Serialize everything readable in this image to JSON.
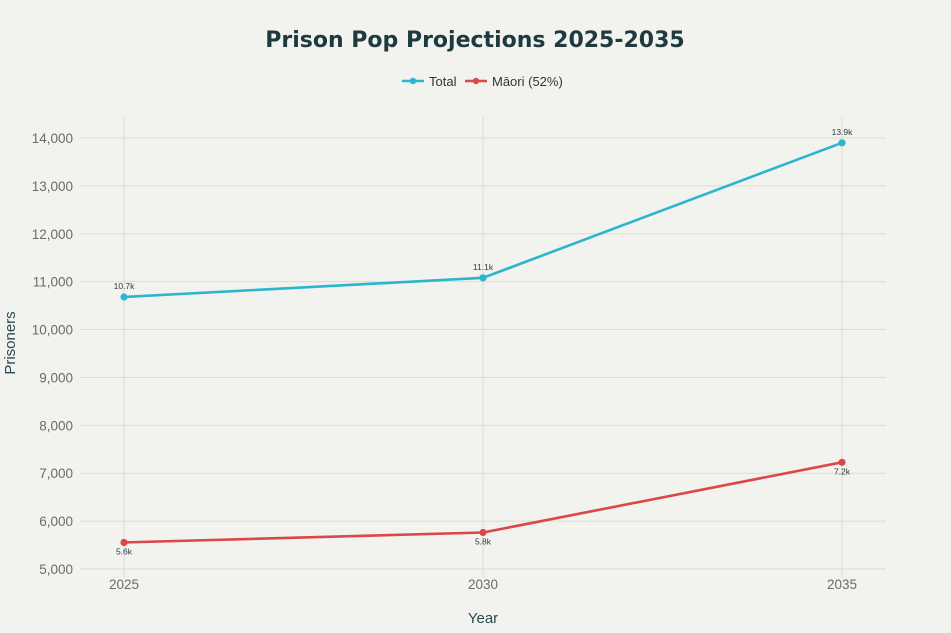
{
  "chart_data": {
    "type": "line",
    "title": "Prison Pop Projections 2025-2035",
    "xlabel": "Year",
    "ylabel": "Prisoners",
    "x": [
      2025,
      2030,
      2035
    ],
    "x_tick_labels": [
      "2025",
      "2030",
      "2035"
    ],
    "ylim": [
      5000,
      14000
    ],
    "y_ticks": [
      5000,
      6000,
      7000,
      8000,
      9000,
      10000,
      11000,
      12000,
      13000,
      14000
    ],
    "y_tick_labels": [
      "5,000",
      "6,000",
      "7,000",
      "8,000",
      "9,000",
      "10,000",
      "11,000",
      "12,000",
      "13,000",
      "14,000"
    ],
    "grid": true,
    "legend_position": "top-center",
    "series": [
      {
        "name": "Total",
        "color": "#2bb5cf",
        "values": [
          10680,
          11080,
          13900
        ],
        "labels": [
          "10.7k",
          "11.1k",
          "13.9k"
        ],
        "label_position": "above"
      },
      {
        "name": "Māori (52%)",
        "color": "#dc4848",
        "values": [
          5554,
          5762,
          7228
        ],
        "labels": [
          "5.6k",
          "5.8k",
          "7.2k"
        ],
        "label_position": "below"
      }
    ]
  }
}
